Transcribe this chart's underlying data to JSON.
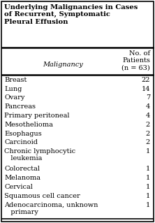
{
  "title": "Underlying Malignancies in Cases\nof Recurrent, Symptomatic\nPleural Effusion",
  "col1_header": "Malignancy",
  "col2_header": "No. of\nPatients\n(n = 63)",
  "rows": [
    {
      "label": "Breast",
      "value": "22",
      "multiline": false
    },
    {
      "label": "Lung",
      "value": "14",
      "multiline": false
    },
    {
      "label": "Ovary",
      "value": "7",
      "multiline": false
    },
    {
      "label": "Pancreas",
      "value": "4",
      "multiline": false
    },
    {
      "label": "Primary peritoneal",
      "value": "4",
      "multiline": false
    },
    {
      "label": "Mesothelioma",
      "value": "2",
      "multiline": false
    },
    {
      "label": "Esophagus",
      "value": "2",
      "multiline": false
    },
    {
      "label": "Carcinoid",
      "value": "2",
      "multiline": false
    },
    {
      "label": "Chronic lymphocytic\n   leukemia",
      "value": "1",
      "multiline": true
    },
    {
      "label": "Colorectal",
      "value": "1",
      "multiline": false
    },
    {
      "label": "Melanoma",
      "value": "1",
      "multiline": false
    },
    {
      "label": "Cervical",
      "value": "1",
      "multiline": false
    },
    {
      "label": "Squamous cell cancer",
      "value": "1",
      "multiline": false
    },
    {
      "label": "Adenocarcinoma, unknown\n   primary",
      "value": "1",
      "multiline": true
    }
  ],
  "bg_color": "#ffffff",
  "border_color": "#000000",
  "title_fontsize": 7.2,
  "header_fontsize": 7.0,
  "row_fontsize": 7.0,
  "fig_width": 2.22,
  "fig_height": 3.19,
  "dpi": 100
}
